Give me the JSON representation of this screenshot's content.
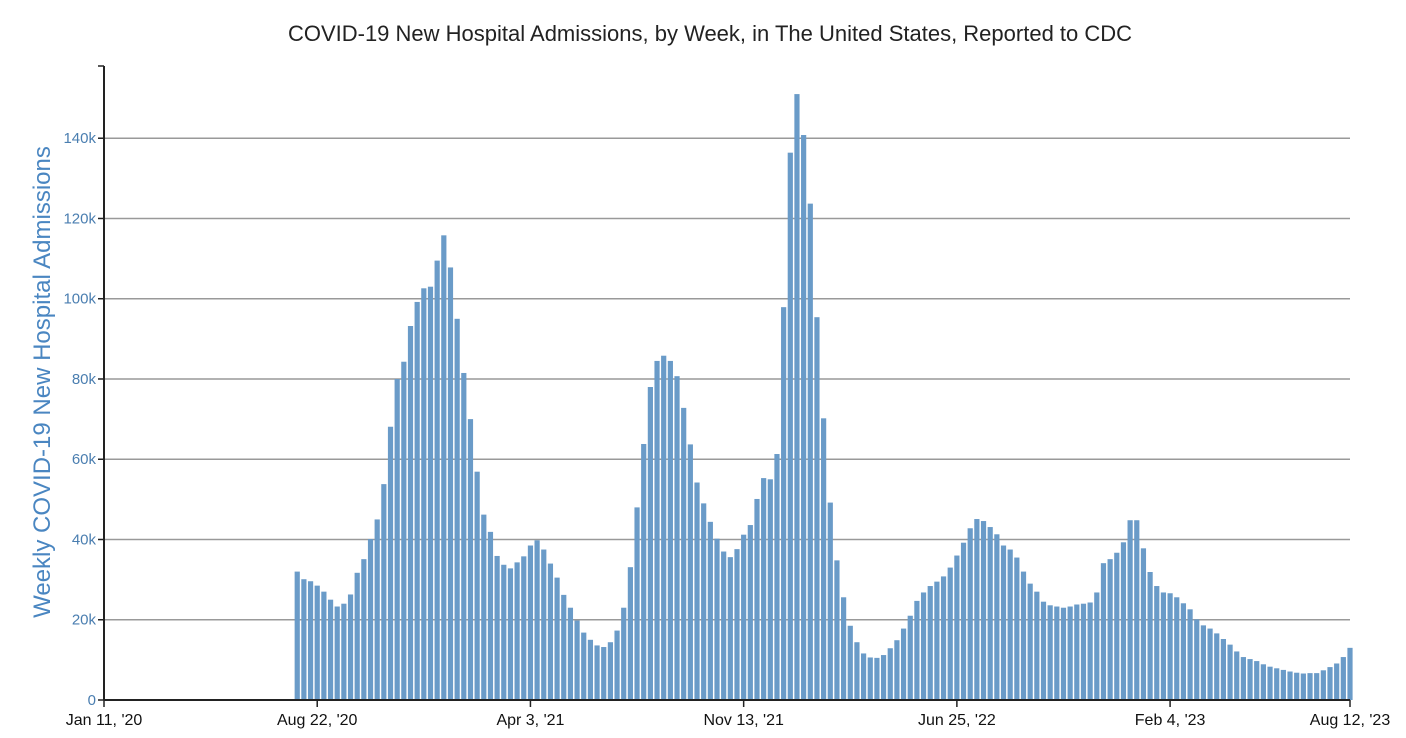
{
  "chart_data": {
    "type": "bar",
    "title": "COVID-19 New Hospital Admissions, by Week, in The United States, Reported to CDC",
    "xlabel": "",
    "ylabel": "Weekly COVID-19 New Hospital Admissions",
    "x_start": "Jan 11, '20",
    "x_end": "Aug 12, '23",
    "x_tick_labels": [
      "Jan 11, '20",
      "Aug 22, '20",
      "Apr 3, '21",
      "Nov 13, '21",
      "Jun 25, '22",
      "Feb 4, '23",
      "Aug 12, '23"
    ],
    "y_tick_labels": [
      "0",
      "20k",
      "40k",
      "60k",
      "80k",
      "100k",
      "120k",
      "140k"
    ],
    "ylim": [
      0,
      158000
    ],
    "grid": "horizontal",
    "legend": "none",
    "colors": {
      "bar": "#6a9bc8",
      "axis_title": "#4a86c1",
      "tick_text": "#4a7eb0",
      "gridline": "#999999",
      "axis": "#222222"
    },
    "first_week": "Aug 1, '20",
    "weeks": [
      "Aug 1, '20",
      "Aug 8, '20",
      "Aug 15, '20",
      "Aug 22, '20",
      "Aug 29, '20",
      "Sep 5, '20",
      "Sep 12, '20",
      "Sep 19, '20",
      "Sep 26, '20",
      "Oct 3, '20",
      "Oct 10, '20",
      "Oct 17, '20",
      "Oct 24, '20",
      "Oct 31, '20",
      "Nov 7, '20",
      "Nov 14, '20",
      "Nov 21, '20",
      "Nov 28, '20",
      "Dec 5, '20",
      "Dec 12, '20",
      "Dec 19, '20",
      "Dec 26, '20",
      "Jan 2, '21",
      "Jan 9, '21",
      "Jan 16, '21",
      "Jan 23, '21",
      "Jan 30, '21",
      "Feb 6, '21",
      "Feb 13, '21",
      "Feb 20, '21",
      "Feb 27, '21",
      "Mar 6, '21",
      "Mar 13, '21",
      "Mar 20, '21",
      "Mar 27, '21",
      "Apr 3, '21",
      "Apr 10, '21",
      "Apr 17, '21",
      "Apr 24, '21",
      "May 1, '21",
      "May 8, '21",
      "May 15, '21",
      "May 22, '21",
      "May 29, '21",
      "Jun 5, '21",
      "Jun 12, '21",
      "Jun 19, '21",
      "Jun 26, '21",
      "Jul 3, '21",
      "Jul 10, '21",
      "Jul 17, '21",
      "Jul 24, '21",
      "Jul 31, '21",
      "Aug 7, '21",
      "Aug 14, '21",
      "Aug 21, '21",
      "Aug 28, '21",
      "Sep 4, '21",
      "Sep 11, '21",
      "Sep 18, '21",
      "Sep 25, '21",
      "Oct 2, '21",
      "Oct 9, '21",
      "Oct 16, '21",
      "Oct 23, '21",
      "Oct 30, '21",
      "Nov 6, '21",
      "Nov 13, '21",
      "Nov 20, '21",
      "Nov 27, '21",
      "Dec 4, '21",
      "Dec 11, '21",
      "Dec 18, '21",
      "Dec 25, '21",
      "Jan 1, '22",
      "Jan 8, '22",
      "Jan 15, '22",
      "Jan 22, '22",
      "Jan 29, '22",
      "Feb 5, '22",
      "Feb 12, '22",
      "Feb 19, '22",
      "Feb 26, '22",
      "Mar 5, '22",
      "Mar 12, '22",
      "Mar 19, '22",
      "Mar 26, '22",
      "Apr 2, '22",
      "Apr 9, '22",
      "Apr 16, '22",
      "Apr 23, '22",
      "Apr 30, '22",
      "May 7, '22",
      "May 14, '22",
      "May 21, '22",
      "May 28, '22",
      "Jun 4, '22",
      "Jun 11, '22",
      "Jun 18, '22",
      "Jun 25, '22",
      "Jul 2, '22",
      "Jul 9, '22",
      "Jul 16, '22",
      "Jul 23, '22",
      "Jul 30, '22",
      "Aug 6, '22",
      "Aug 13, '22",
      "Aug 20, '22",
      "Aug 27, '22",
      "Sep 3, '22",
      "Sep 10, '22",
      "Sep 17, '22",
      "Sep 24, '22",
      "Oct 1, '22",
      "Oct 8, '22",
      "Oct 15, '22",
      "Oct 22, '22",
      "Oct 29, '22",
      "Nov 5, '22",
      "Nov 12, '22",
      "Nov 19, '22",
      "Nov 26, '22",
      "Dec 3, '22",
      "Dec 10, '22",
      "Dec 17, '22",
      "Dec 24, '22",
      "Dec 31, '22",
      "Jan 7, '23",
      "Jan 14, '23",
      "Jan 21, '23",
      "Jan 28, '23",
      "Feb 4, '23",
      "Feb 11, '23",
      "Feb 18, '23",
      "Feb 25, '23",
      "Mar 4, '23",
      "Mar 11, '23",
      "Mar 18, '23",
      "Mar 25, '23",
      "Apr 1, '23",
      "Apr 8, '23",
      "Apr 15, '23",
      "Apr 22, '23",
      "Apr 29, '23",
      "May 6, '23",
      "May 13, '23",
      "May 20, '23",
      "May 27, '23",
      "Jun 3, '23",
      "Jun 10, '23",
      "Jun 17, '23",
      "Jun 24, '23",
      "Jul 1, '23",
      "Jul 8, '23",
      "Jul 15, '23",
      "Jul 22, '23",
      "Jul 29, '23",
      "Aug 5, '23",
      "Aug 12, '23"
    ],
    "values": [
      32000,
      30100,
      29600,
      28500,
      27000,
      25000,
      23300,
      24000,
      26300,
      31700,
      35100,
      40100,
      45000,
      53800,
      68100,
      80000,
      84300,
      93200,
      99200,
      102600,
      103000,
      109500,
      115800,
      107800,
      95000,
      81500,
      70000,
      56900,
      46200,
      41900,
      35900,
      33700,
      32800,
      34300,
      35800,
      38500,
      39800,
      37500,
      34000,
      30500,
      26200,
      23000,
      19800,
      16800,
      15000,
      13600,
      13200,
      14400,
      17300,
      23000,
      33100,
      48000,
      63800,
      78000,
      84500,
      85800,
      84500,
      80700,
      72800,
      63700,
      54200,
      49000,
      44400,
      40200,
      37000,
      35600,
      37600,
      41200,
      43600,
      50100,
      55300,
      55000,
      61300,
      97900,
      136400,
      151000,
      140800,
      123700,
      95400,
      70200,
      49200,
      34800,
      25600,
      18500,
      14400,
      11600,
      10600,
      10500,
      11200,
      12900,
      14900,
      17800,
      21000,
      24700,
      26800,
      28400,
      29500,
      30800,
      33000,
      36000,
      39200,
      42800,
      45100,
      44600,
      43100,
      41300,
      38500,
      37500,
      35500,
      32000,
      29000,
      27000,
      24500,
      23600,
      23300,
      23000,
      23300,
      23800,
      24000,
      24300,
      26800,
      34100,
      35100,
      36700,
      39300,
      44800,
      44800,
      37800,
      31900,
      28400,
      26800,
      26600,
      25600,
      24100,
      22600,
      20100,
      18600,
      17800,
      16600,
      15200,
      13800,
      12100,
      10700,
      10200,
      9700,
      8900,
      8300,
      7900,
      7500,
      7100,
      6800,
      6600,
      6700,
      6700,
      7400,
      8200,
      9100,
      10700,
      13000
    ]
  }
}
